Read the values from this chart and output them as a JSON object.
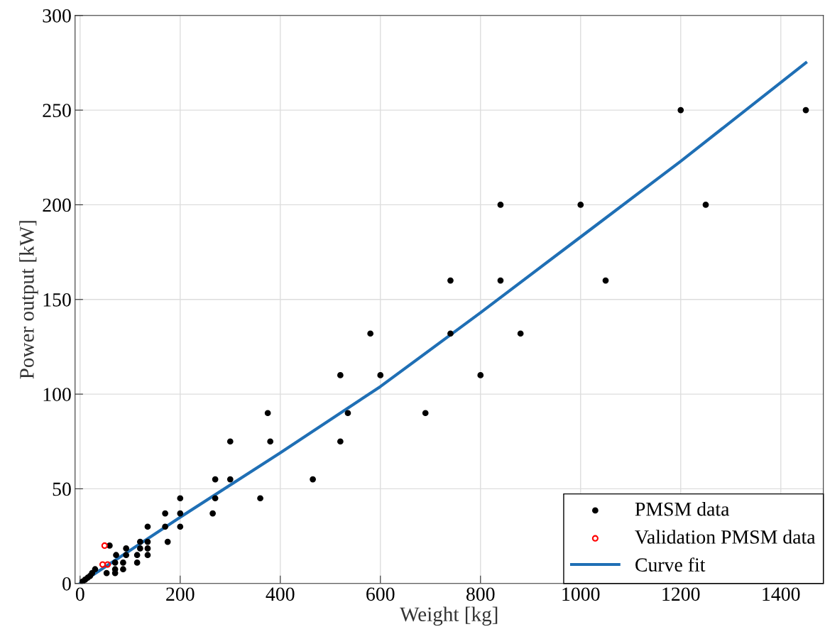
{
  "chart_data": {
    "type": "scatter",
    "xlabel": "Weight [kg]",
    "ylabel": "Power output [kW]",
    "xlim": [
      -10,
      1485
    ],
    "ylim": [
      0,
      300
    ],
    "xticks": [
      0,
      200,
      400,
      600,
      800,
      1000,
      1200,
      1400
    ],
    "yticks": [
      0,
      50,
      100,
      150,
      200,
      250,
      300
    ],
    "grid": true,
    "legend": "bottom right",
    "series": [
      {
        "name": "PMSM data",
        "marker": "circle",
        "color": "#000000",
        "x": [
          5,
          10,
          15,
          20,
          24,
          30,
          53,
          59,
          70,
          70,
          70,
          72,
          86,
          86,
          92,
          92,
          114,
          114,
          120,
          120,
          135,
          135,
          135,
          135,
          170,
          170,
          175,
          200,
          200,
          200,
          265,
          270,
          270,
          300,
          300,
          360,
          375,
          380,
          465,
          520,
          520,
          535,
          580,
          600,
          690,
          740,
          740,
          800,
          840,
          840,
          880,
          1000,
          1050,
          1200,
          1250,
          1450
        ],
        "values": [
          1,
          2,
          3,
          4,
          5.5,
          7.5,
          5.5,
          20,
          5.5,
          7.5,
          11,
          15,
          7.5,
          11,
          15,
          18.5,
          11,
          15,
          18.5,
          22,
          15,
          18.5,
          22,
          30,
          30,
          37,
          22,
          30,
          37,
          45,
          37,
          45,
          55,
          55,
          75,
          45,
          90,
          75,
          55,
          75,
          110,
          90,
          132,
          110,
          90,
          132,
          160,
          110,
          160,
          200,
          132,
          200,
          160,
          250,
          200,
          250
        ]
      },
      {
        "name": "Validation PMSM data",
        "marker": "circle",
        "color": "#ff0000",
        "x": [
          45,
          49,
          55
        ],
        "values": [
          10,
          20,
          10
        ]
      },
      {
        "name": "Curve fit",
        "type": "line",
        "marker": "none",
        "color": "#1f6fb5",
        "x": [
          0,
          200,
          400,
          600,
          800,
          1000,
          1200,
          1450
        ],
        "values": [
          0,
          35,
          69,
          104,
          143,
          183,
          223,
          275
        ]
      }
    ]
  }
}
